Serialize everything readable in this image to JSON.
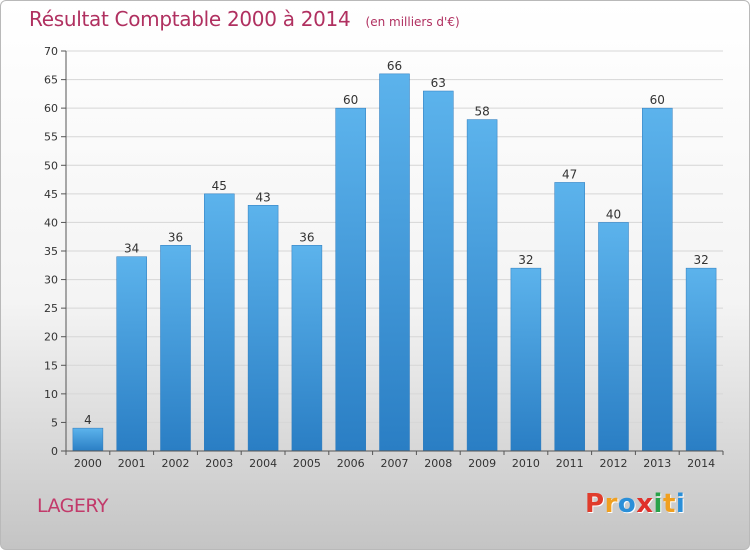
{
  "chart_data": {
    "type": "bar",
    "title": "Résultat Comptable 2000 à 2014",
    "subtitle": "(en milliers d'€)",
    "xlabel": "",
    "ylabel": "",
    "categories": [
      "2000",
      "2001",
      "2002",
      "2003",
      "2004",
      "2005",
      "2006",
      "2007",
      "2008",
      "2009",
      "2010",
      "2011",
      "2012",
      "2013",
      "2014"
    ],
    "values": [
      4,
      34,
      36,
      45,
      43,
      36,
      60,
      66,
      63,
      58,
      32,
      47,
      40,
      60,
      32
    ],
    "ylim": [
      0,
      70
    ],
    "yticks": [
      0,
      5,
      10,
      15,
      20,
      25,
      30,
      35,
      40,
      45,
      50,
      55,
      60,
      65,
      70
    ],
    "grid": true,
    "bar_color": "#3d95d8"
  },
  "footer": {
    "town": "LAGERY",
    "logo": "Proxiti",
    "logo_colors": [
      "#e03c2c",
      "#f0a020",
      "#2a8fd8",
      "#e0302a",
      "#2aa24a",
      "#f0a020",
      "#2a8fd8"
    ]
  }
}
